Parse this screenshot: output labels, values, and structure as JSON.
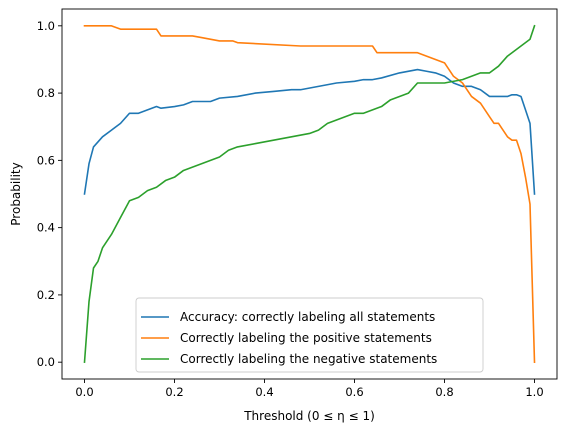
{
  "chart_data": {
    "type": "line",
    "xlabel": "Threshold (0 ≤ η ≤ 1)",
    "ylabel": "Probability",
    "xlim": [
      -0.05,
      1.05
    ],
    "ylim": [
      -0.05,
      1.05
    ],
    "xticks": [
      "0.0",
      "0.2",
      "0.4",
      "0.6",
      "0.8",
      "1.0"
    ],
    "yticks": [
      "0.0",
      "0.2",
      "0.4",
      "0.6",
      "0.8",
      "1.0"
    ],
    "grid": false,
    "legend_position": "lower center",
    "series": [
      {
        "name": "Accuracy: correctly labeling all statements",
        "color": "#1f77b4",
        "x": [
          0.0,
          0.01,
          0.02,
          0.04,
          0.06,
          0.08,
          0.1,
          0.12,
          0.14,
          0.16,
          0.17,
          0.2,
          0.22,
          0.24,
          0.28,
          0.3,
          0.34,
          0.38,
          0.42,
          0.46,
          0.48,
          0.52,
          0.56,
          0.6,
          0.62,
          0.64,
          0.66,
          0.7,
          0.74,
          0.76,
          0.78,
          0.8,
          0.82,
          0.84,
          0.86,
          0.88,
          0.9,
          0.91,
          0.92,
          0.94,
          0.95,
          0.96,
          0.97,
          0.98,
          0.99,
          1.0
        ],
        "y": [
          0.5,
          0.59,
          0.64,
          0.67,
          0.69,
          0.71,
          0.74,
          0.74,
          0.75,
          0.76,
          0.755,
          0.76,
          0.765,
          0.775,
          0.775,
          0.785,
          0.79,
          0.8,
          0.805,
          0.81,
          0.81,
          0.82,
          0.83,
          0.835,
          0.84,
          0.84,
          0.845,
          0.86,
          0.87,
          0.865,
          0.86,
          0.85,
          0.83,
          0.82,
          0.82,
          0.81,
          0.79,
          0.79,
          0.79,
          0.79,
          0.795,
          0.795,
          0.79,
          0.75,
          0.71,
          0.5
        ]
      },
      {
        "name": "Correctly labeling the positive statements",
        "color": "#ff7f0e",
        "x": [
          0.0,
          0.02,
          0.06,
          0.08,
          0.1,
          0.16,
          0.17,
          0.24,
          0.26,
          0.3,
          0.33,
          0.34,
          0.48,
          0.64,
          0.65,
          0.74,
          0.76,
          0.78,
          0.8,
          0.82,
          0.84,
          0.86,
          0.88,
          0.9,
          0.91,
          0.92,
          0.93,
          0.94,
          0.95,
          0.96,
          0.97,
          0.98,
          0.99,
          1.0
        ],
        "y": [
          1.0,
          1.0,
          1.0,
          0.99,
          0.99,
          0.99,
          0.97,
          0.97,
          0.965,
          0.955,
          0.955,
          0.95,
          0.94,
          0.94,
          0.92,
          0.92,
          0.91,
          0.9,
          0.89,
          0.85,
          0.83,
          0.79,
          0.77,
          0.73,
          0.71,
          0.71,
          0.69,
          0.67,
          0.66,
          0.66,
          0.62,
          0.55,
          0.47,
          0.0
        ]
      },
      {
        "name": "Correctly labeling the negative statements",
        "color": "#2ca02c",
        "x": [
          0.0,
          0.01,
          0.02,
          0.03,
          0.04,
          0.06,
          0.08,
          0.1,
          0.12,
          0.14,
          0.16,
          0.18,
          0.2,
          0.22,
          0.24,
          0.26,
          0.28,
          0.3,
          0.32,
          0.34,
          0.38,
          0.42,
          0.46,
          0.5,
          0.52,
          0.54,
          0.56,
          0.58,
          0.6,
          0.62,
          0.64,
          0.66,
          0.68,
          0.7,
          0.72,
          0.74,
          0.76,
          0.8,
          0.84,
          0.86,
          0.88,
          0.9,
          0.92,
          0.94,
          0.96,
          0.98,
          0.99,
          1.0
        ],
        "y": [
          0.0,
          0.18,
          0.28,
          0.3,
          0.34,
          0.38,
          0.43,
          0.48,
          0.49,
          0.51,
          0.52,
          0.54,
          0.55,
          0.57,
          0.58,
          0.59,
          0.6,
          0.61,
          0.63,
          0.64,
          0.65,
          0.66,
          0.67,
          0.68,
          0.69,
          0.71,
          0.72,
          0.73,
          0.74,
          0.74,
          0.75,
          0.76,
          0.78,
          0.79,
          0.8,
          0.83,
          0.83,
          0.83,
          0.84,
          0.85,
          0.86,
          0.86,
          0.88,
          0.91,
          0.93,
          0.95,
          0.96,
          1.0
        ]
      }
    ]
  }
}
